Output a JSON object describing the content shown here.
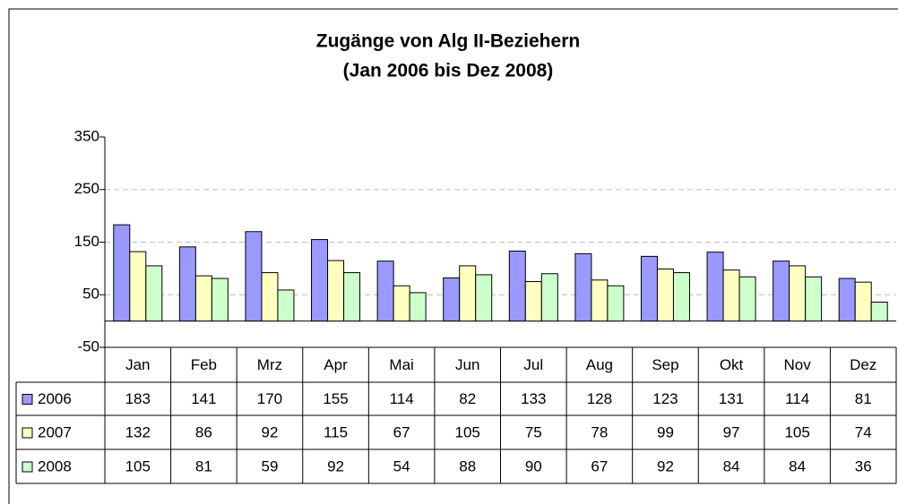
{
  "chart_data": {
    "type": "bar",
    "title": "Zugänge von Alg II-Beziehern",
    "subtitle": "(Jan 2006 bis Dez 2008)",
    "categories": [
      "Jan",
      "Feb",
      "Mrz",
      "Apr",
      "Mai",
      "Jun",
      "Jul",
      "Aug",
      "Sep",
      "Okt",
      "Nov",
      "Dez"
    ],
    "series": [
      {
        "name": "2006",
        "color": "#9999ff",
        "values": [
          183,
          141,
          170,
          155,
          114,
          82,
          133,
          128,
          123,
          131,
          114,
          81
        ]
      },
      {
        "name": "2007",
        "color": "#ffffc0",
        "values": [
          132,
          86,
          92,
          115,
          67,
          105,
          75,
          78,
          99,
          97,
          105,
          74
        ]
      },
      {
        "name": "2008",
        "color": "#ccffcc",
        "values": [
          105,
          81,
          59,
          92,
          54,
          88,
          90,
          67,
          92,
          84,
          84,
          36
        ]
      }
    ],
    "ylim": [
      -50,
      350
    ],
    "yticks": [
      -50,
      50,
      150,
      250,
      350
    ],
    "grid": true
  }
}
